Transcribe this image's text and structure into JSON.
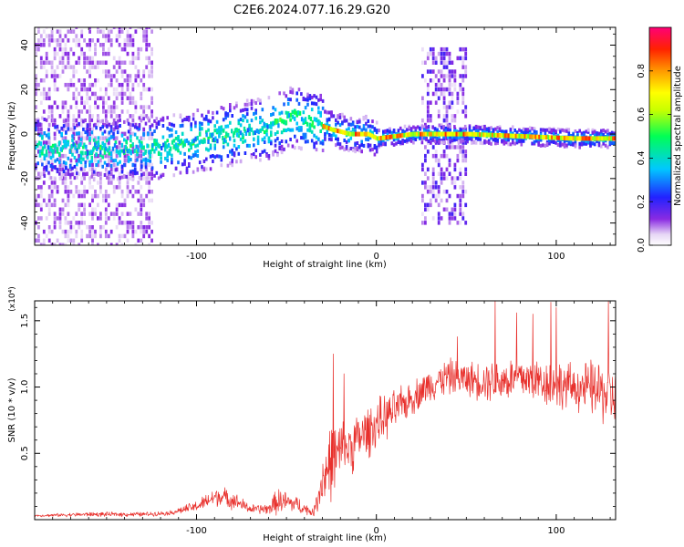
{
  "title": "C2E6.2024.077.16.29.G20",
  "chart_data": [
    {
      "type": "heatmap",
      "xlabel": "Height of straight line (km)",
      "ylabel": "Frequency (Hz)",
      "xlim": [
        -190,
        133
      ],
      "ylim": [
        -50,
        48
      ],
      "xticks": [
        -100,
        0,
        100
      ],
      "yticks": [
        -40,
        -20,
        0,
        20,
        40
      ],
      "colorbar": {
        "label": "Normalized spectral amplitude",
        "range": [
          0.0,
          1.0
        ],
        "ticks": [
          0.0,
          0.2,
          0.4,
          0.6,
          0.8
        ],
        "tick_labels": [
          "0.0",
          "0.2",
          "0.4",
          "0.6",
          "0.8"
        ],
        "colormap": "rainbow (white → purple → blue → cyan → green → yellow → orange → red → magenta)"
      },
      "ridge": {
        "description": "dominant frequency track versus height",
        "x": [
          -190,
          -150,
          -120,
          -100,
          -80,
          -60,
          -45,
          -35,
          -25,
          -15,
          -5,
          0,
          20,
          50,
          80,
          110,
          133
        ],
        "y": [
          -6,
          -7,
          -6,
          -3,
          0,
          3,
          8,
          5,
          2,
          0,
          0,
          -2,
          0,
          0,
          -1,
          -2,
          -2
        ]
      },
      "broadband_bands": [
        {
          "x_range": [
            -190,
            -125
          ],
          "y_range": [
            -50,
            48
          ]
        },
        {
          "x_range": [
            25,
            50
          ],
          "y_range": [
            -40,
            38
          ]
        }
      ]
    },
    {
      "type": "line",
      "xlabel": "Height of straight line (km)",
      "ylabel": "SNR (10 * v/v)",
      "y_exponent_label": "(x10⁴)",
      "color": "#e8302c",
      "xlim": [
        -190,
        133
      ],
      "ylim": [
        0,
        1.65
      ],
      "xticks": [
        -100,
        0,
        100
      ],
      "yticks": [
        0.5,
        1.0,
        1.5
      ],
      "ytick_labels": [
        "0.5",
        "1.0",
        "1.5"
      ],
      "envelope": {
        "x": [
          -190,
          -160,
          -130,
          -115,
          -100,
          -88,
          -80,
          -70,
          -60,
          -55,
          -45,
          -35,
          -30,
          -25,
          -15,
          0,
          10,
          20,
          30,
          40,
          50,
          60,
          70,
          80,
          90,
          100,
          110,
          120,
          128,
          133
        ],
        "y": [
          0.03,
          0.04,
          0.04,
          0.05,
          0.1,
          0.18,
          0.15,
          0.08,
          0.08,
          0.14,
          0.12,
          0.05,
          0.3,
          0.45,
          0.55,
          0.72,
          0.82,
          0.92,
          1.02,
          1.08,
          1.06,
          1.05,
          1.05,
          1.07,
          1.05,
          1.02,
          1.0,
          0.99,
          0.95,
          0.92
        ],
        "amp": [
          0.01,
          0.02,
          0.02,
          0.02,
          0.05,
          0.09,
          0.08,
          0.04,
          0.05,
          0.12,
          0.08,
          0.03,
          0.25,
          0.35,
          0.25,
          0.22,
          0.18,
          0.15,
          0.15,
          0.16,
          0.15,
          0.18,
          0.2,
          0.2,
          0.2,
          0.22,
          0.2,
          0.25,
          0.3,
          0.25
        ]
      },
      "spikes": [
        {
          "x": -24,
          "y": 1.25
        },
        {
          "x": -18,
          "y": 1.1
        },
        {
          "x": 45,
          "y": 1.38
        },
        {
          "x": 66,
          "y": 1.65
        },
        {
          "x": 78,
          "y": 1.56
        },
        {
          "x": 87,
          "y": 1.55
        },
        {
          "x": 97,
          "y": 1.64
        },
        {
          "x": 100,
          "y": 1.6
        },
        {
          "x": 129,
          "y": 1.65
        }
      ]
    }
  ]
}
